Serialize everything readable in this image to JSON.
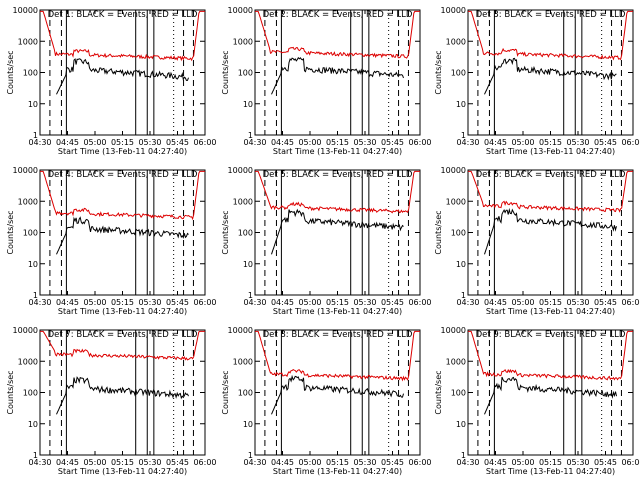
{
  "chart_data": {
    "type": "line",
    "grid": false,
    "y_scale": "log",
    "ylim": [
      1,
      10000
    ],
    "x_tick_labels": [
      "04:30",
      "04:45",
      "05:00",
      "05:15",
      "05:30",
      "05:45",
      "06:00"
    ],
    "y_tick_labels": [
      "1",
      "10",
      "100",
      "1000",
      "10000"
    ],
    "ylabel": "Counts/sec",
    "xlabel": "Start Time (13-Feb-11 04:27:40)",
    "series_colors": {
      "black": "#000000",
      "red": "#dd0000"
    },
    "panels": [
      {
        "title": "Det 1: BLACK = Events, RED = LLD",
        "red_level": 300,
        "black_level": 90
      },
      {
        "title": "Det 2: BLACK = Events, RED = LLD",
        "red_level": 350,
        "black_level": 100
      },
      {
        "title": "Det 3: BLACK = Events, RED = LLD",
        "red_level": 320,
        "black_level": 95
      },
      {
        "title": "Det 4: BLACK = Events, RED = LLD",
        "red_level": 330,
        "black_level": 100
      },
      {
        "title": "Det 5: BLACK = Events, RED = LLD",
        "red_level": 500,
        "black_level": 180
      },
      {
        "title": "Det 6: BLACK = Events, RED = LLD",
        "red_level": 550,
        "black_level": 190
      },
      {
        "title": "Det 7: BLACK = Events, RED = LLD",
        "red_level": 1300,
        "black_level": 100
      },
      {
        "title": "Det 8: BLACK = Events, RED = LLD",
        "red_level": 300,
        "black_level": 110
      },
      {
        "title": "Det 9: BLACK = Events, RED = LLD",
        "red_level": 300,
        "black_level": 110
      }
    ]
  }
}
